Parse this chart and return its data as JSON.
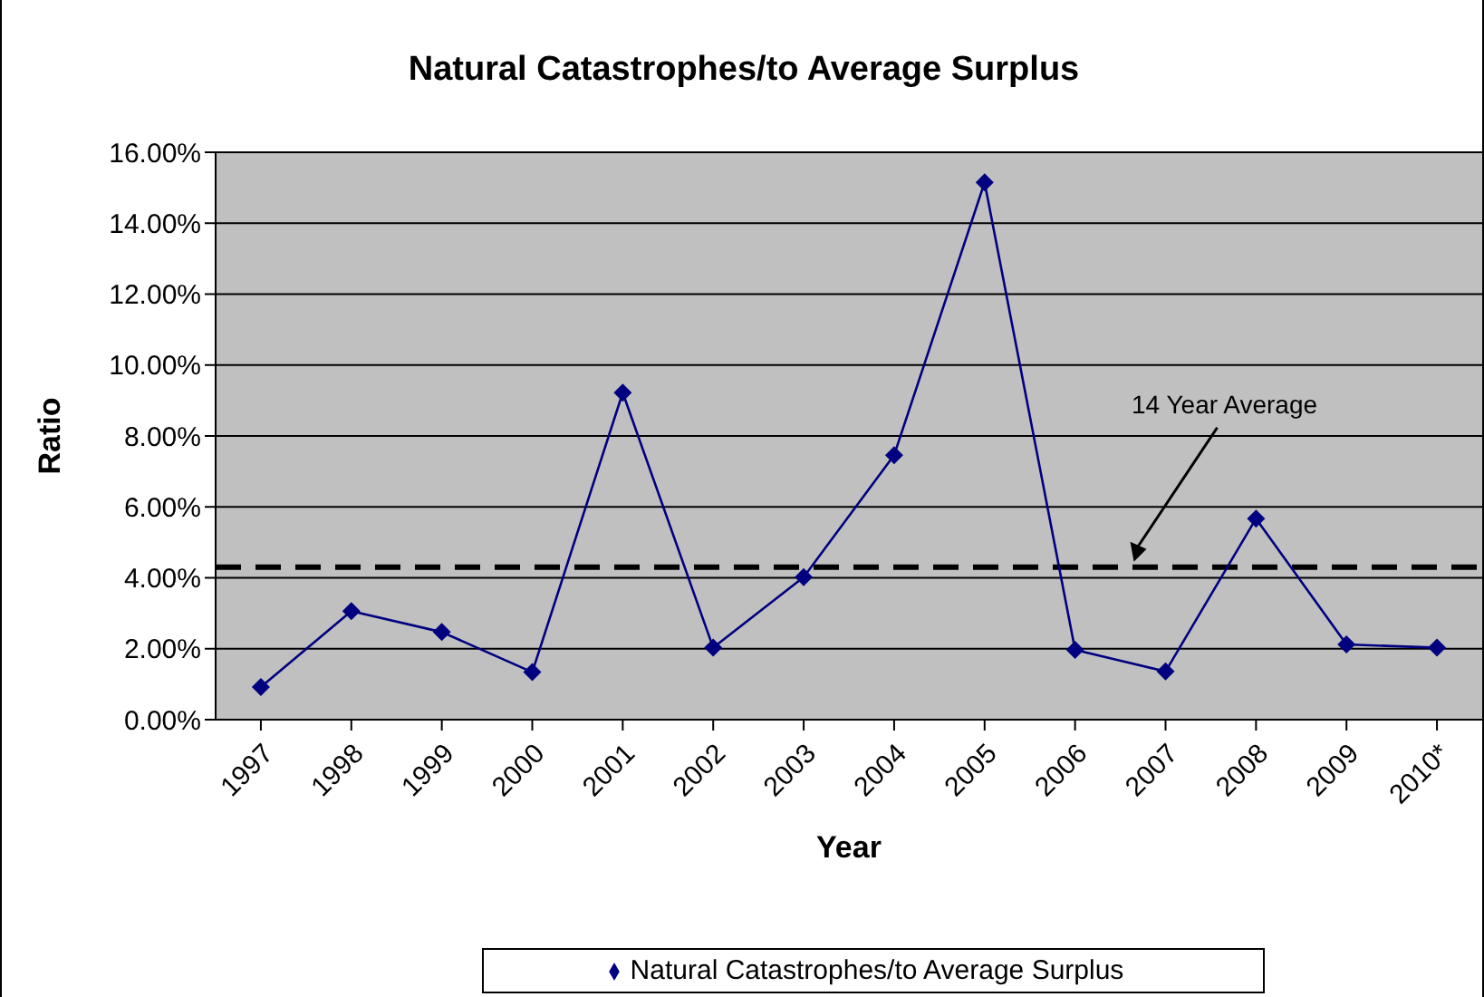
{
  "chart_data": {
    "type": "line",
    "title": "Natural Catastrophes/to Average Surplus",
    "xlabel": "Year",
    "ylabel": "Ratio",
    "categories": [
      "1997",
      "1998",
      "1999",
      "2000",
      "2001",
      "2002",
      "2003",
      "2004",
      "2005",
      "2006",
      "2007",
      "2008",
      "2009",
      "2010*"
    ],
    "series": [
      {
        "name": "Natural Catastrophes/to Average Surplus",
        "color": "#000080",
        "values": [
          0.92,
          3.06,
          2.47,
          1.34,
          9.22,
          2.03,
          4.02,
          7.46,
          15.15,
          1.97,
          1.36,
          5.67,
          2.12,
          2.03
        ]
      }
    ],
    "ylim": [
      0,
      16
    ],
    "yticks": [
      {
        "value": 0,
        "label": "0.00%"
      },
      {
        "value": 2,
        "label": "2.00%"
      },
      {
        "value": 4,
        "label": "4.00%"
      },
      {
        "value": 6,
        "label": "6.00%"
      },
      {
        "value": 8,
        "label": "8.00%"
      },
      {
        "value": 10,
        "label": "10.00%"
      },
      {
        "value": 12,
        "label": "12.00%"
      },
      {
        "value": 14,
        "label": "14.00%"
      },
      {
        "value": 16,
        "label": "16.00%"
      }
    ],
    "ref_lines": [
      {
        "axis": "y",
        "value": 4.3,
        "label": "14 Year Average",
        "color": "#000000",
        "line_style": "dashed"
      }
    ],
    "grid": "y",
    "legend": "bottom",
    "marker": "diamond",
    "line_style": "solid"
  }
}
